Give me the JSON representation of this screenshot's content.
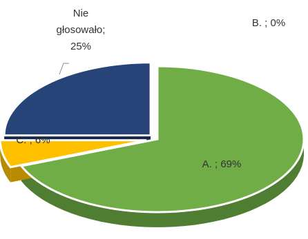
{
  "chart_data": {
    "type": "pie",
    "style": "3d-exploded",
    "slices": [
      {
        "key": "A",
        "label": "A. ; 69%",
        "value": 69,
        "color": "#70ad47",
        "side_color": "#4f7d31"
      },
      {
        "key": "B",
        "label": "B. ; 0%",
        "value": 0,
        "color": "#a5a5a5",
        "side_color": "#7a7a7a"
      },
      {
        "key": "C",
        "label": "C. ; 6%",
        "value": 6,
        "color": "#ffc000",
        "side_color": "#b88a00"
      },
      {
        "key": "N",
        "label_lines": [
          "Nie",
          "głosowało;",
          "25%"
        ],
        "value": 25,
        "color": "#264478",
        "side_color": "#17294a"
      }
    ]
  }
}
